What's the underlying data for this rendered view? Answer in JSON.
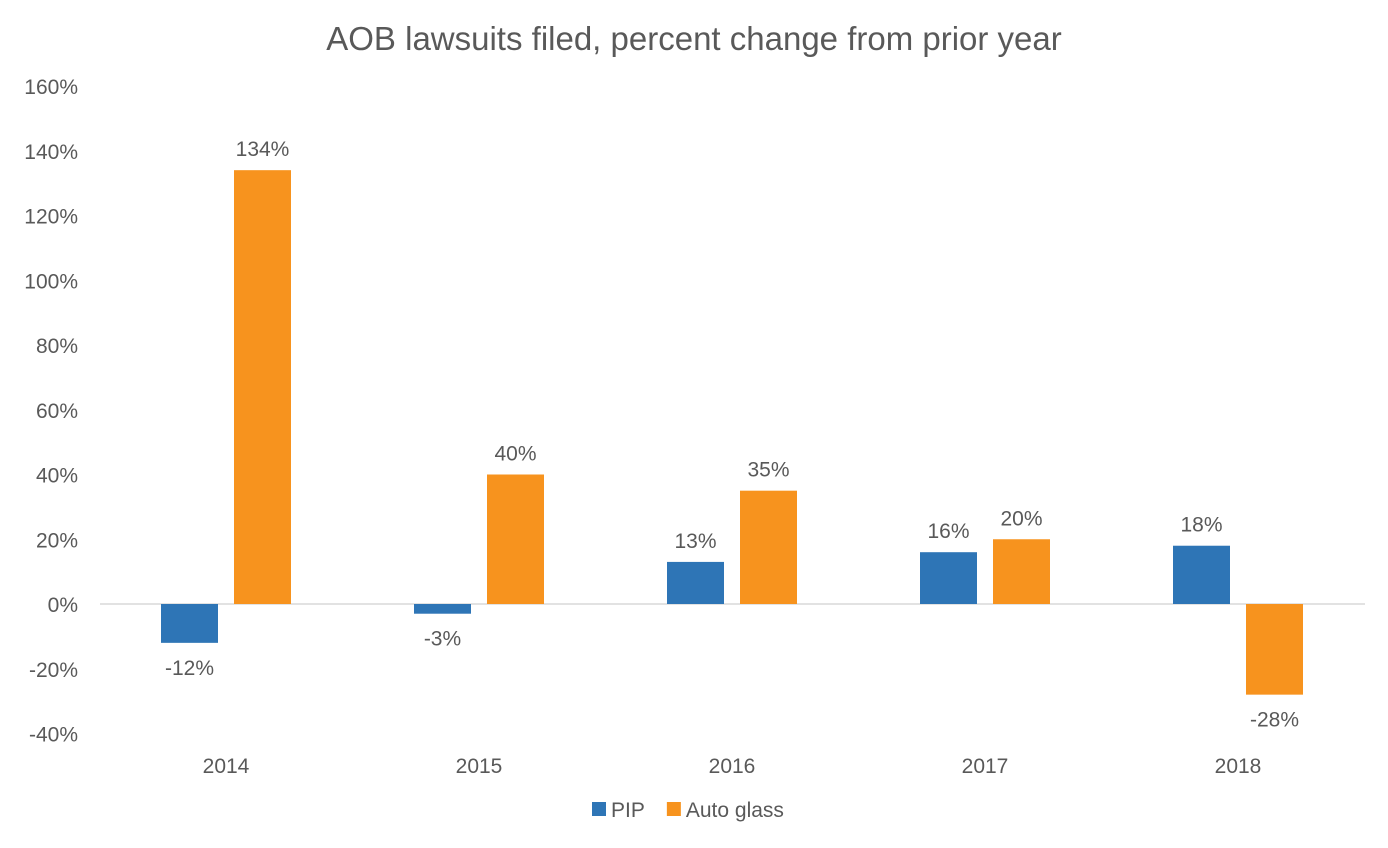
{
  "chart_data": {
    "type": "bar",
    "title": "AOB lawsuits filed, percent change from prior year",
    "xlabel": "",
    "ylabel": "",
    "categories": [
      "2014",
      "2015",
      "2016",
      "2017",
      "2018"
    ],
    "series": [
      {
        "name": "PIP",
        "color": "#2E75B6",
        "values": [
          -12,
          -3,
          13,
          16,
          18
        ],
        "labels": [
          "-12%",
          "-3%",
          "13%",
          "16%",
          "18%"
        ]
      },
      {
        "name": "Auto glass",
        "color": "#F7931E",
        "values": [
          134,
          40,
          35,
          20,
          -28
        ],
        "labels": [
          "134%",
          "40%",
          "35%",
          "20%",
          "-28%"
        ]
      }
    ],
    "ylim": [
      -40,
      160
    ],
    "yticks": [
      -40,
      -20,
      0,
      20,
      40,
      60,
      80,
      100,
      120,
      140,
      160
    ],
    "ytick_labels": [
      "-40%",
      "-20%",
      "0%",
      "20%",
      "40%",
      "60%",
      "80%",
      "100%",
      "120%",
      "140%",
      "160%"
    ],
    "grid": false,
    "legend": "bottom"
  }
}
